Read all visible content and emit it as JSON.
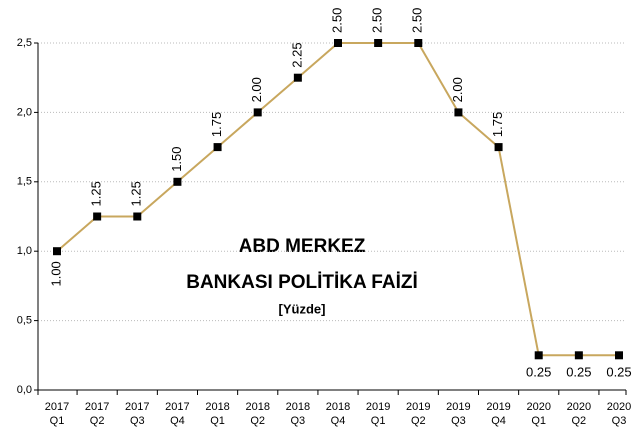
{
  "chart_data": {
    "type": "line",
    "annotations": [
      "ABD MERKEZ",
      "BANKASI POLİTİKA FAİZİ",
      "[Yüzde]"
    ],
    "categories": [
      [
        "2017",
        "Q1"
      ],
      [
        "2017",
        "Q2"
      ],
      [
        "2017",
        "Q3"
      ],
      [
        "2017",
        "Q4"
      ],
      [
        "2018",
        "Q1"
      ],
      [
        "2018",
        "Q2"
      ],
      [
        "2018",
        "Q3"
      ],
      [
        "2018",
        "Q4"
      ],
      [
        "2019",
        "Q1"
      ],
      [
        "2019",
        "Q2"
      ],
      [
        "2019",
        "Q3"
      ],
      [
        "2019",
        "Q4"
      ],
      [
        "2020",
        "Q1"
      ],
      [
        "2020",
        "Q2"
      ],
      [
        "2020",
        "Q3"
      ]
    ],
    "values": [
      1.0,
      1.25,
      1.25,
      1.5,
      1.75,
      2.0,
      2.25,
      2.5,
      2.5,
      2.5,
      2.0,
      1.75,
      0.25,
      0.25,
      0.25
    ],
    "value_labels": [
      "1.00",
      "1.25",
      "1.25",
      "1.50",
      "1.75",
      "2.00",
      "2.25",
      "2.50",
      "2.50",
      "2.50",
      "2.00",
      "1.75",
      "0.25",
      "0.25",
      "0.25"
    ],
    "color": "#c8a75e",
    "ylim": [
      0,
      2.5
    ],
    "yticks": [
      {
        "value": 0,
        "label": "0,0"
      },
      {
        "value": 0.5,
        "label": "0,5"
      },
      {
        "value": 1,
        "label": "1,0"
      },
      {
        "value": 1.5,
        "label": "1,5"
      },
      {
        "value": 2,
        "label": "2,0"
      },
      {
        "value": 2.5,
        "label": "2,5"
      }
    ],
    "grid": true
  }
}
